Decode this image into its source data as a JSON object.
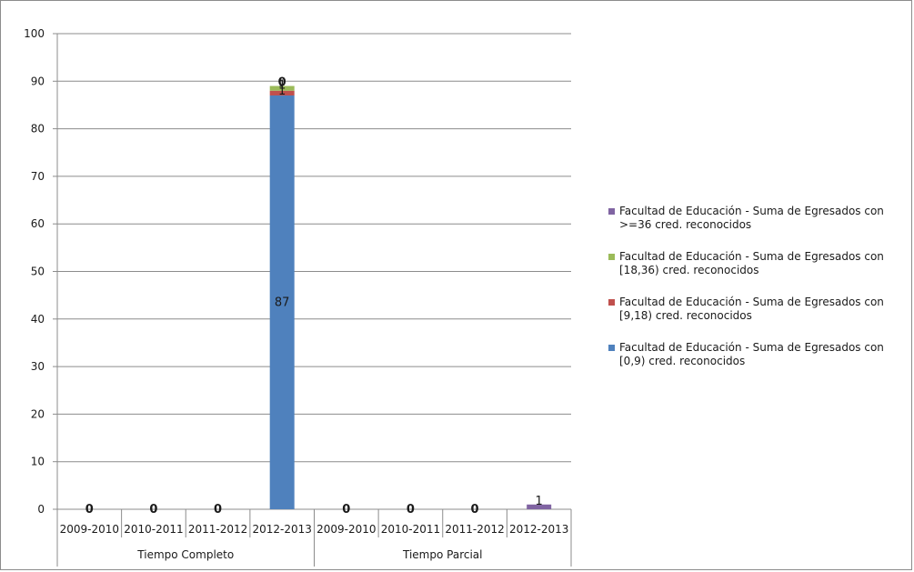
{
  "chart_data": {
    "type": "bar",
    "stacked": true,
    "title": "",
    "xlabel": "",
    "ylabel": "",
    "ylim": [
      0,
      100
    ],
    "yticks": [
      0,
      10,
      20,
      30,
      40,
      50,
      60,
      70,
      80,
      90,
      100
    ],
    "grid": true,
    "legend_position": "right",
    "groups": [
      {
        "label": "Tiempo Completo",
        "categories": [
          "2009-2010",
          "2010-2011",
          "2011-2012",
          "2012-2013"
        ]
      },
      {
        "label": "Tiempo Parcial",
        "categories": [
          "2009-2010",
          "2010-2011",
          "2011-2012",
          "2012-2013"
        ]
      }
    ],
    "categories": [
      "2009-2010",
      "2010-2011",
      "2011-2012",
      "2012-2013",
      "2009-2010",
      "2010-2011",
      "2011-2012",
      "2012-2013"
    ],
    "series": [
      {
        "name": "Facultad de Educación - Suma de Egresados con [0,9) cred. reconocidos",
        "color": "#4f81bd",
        "values": [
          0,
          0,
          0,
          87,
          0,
          0,
          0,
          0
        ]
      },
      {
        "name": "Facultad de Educación - Suma de Egresados con [9,18) cred. reconocidos",
        "color": "#c0504d",
        "values": [
          0,
          0,
          0,
          1,
          0,
          0,
          0,
          0
        ]
      },
      {
        "name": "Facultad de Educación - Suma de Egresados con [18,36) cred. reconocidos",
        "color": "#9bbb59",
        "values": [
          0,
          0,
          0,
          1,
          0,
          0,
          0,
          0
        ]
      },
      {
        "name": "Facultad de Educación - Suma de Egresados con >=36 cred. reconocidos",
        "color": "#8064a2",
        "values": [
          0,
          0,
          0,
          0,
          0,
          0,
          0,
          1
        ]
      }
    ],
    "data_labels": [
      {
        "category_index": 0,
        "series_index": 0,
        "text": "0"
      },
      {
        "category_index": 1,
        "series_index": 0,
        "text": "0"
      },
      {
        "category_index": 2,
        "series_index": 0,
        "text": "0"
      },
      {
        "category_index": 3,
        "series_index": 0,
        "text": "87"
      },
      {
        "category_index": 3,
        "series_index": 1,
        "text": "1"
      },
      {
        "category_index": 3,
        "series_index": 2,
        "text": "1"
      },
      {
        "category_index": 3,
        "series_index": 3,
        "text": "0"
      },
      {
        "category_index": 4,
        "series_index": 0,
        "text": "0"
      },
      {
        "category_index": 5,
        "series_index": 0,
        "text": "0"
      },
      {
        "category_index": 6,
        "series_index": 0,
        "text": "0"
      },
      {
        "category_index": 7,
        "series_index": 3,
        "text": "1"
      }
    ],
    "legend_order": [
      3,
      2,
      1,
      0
    ]
  }
}
